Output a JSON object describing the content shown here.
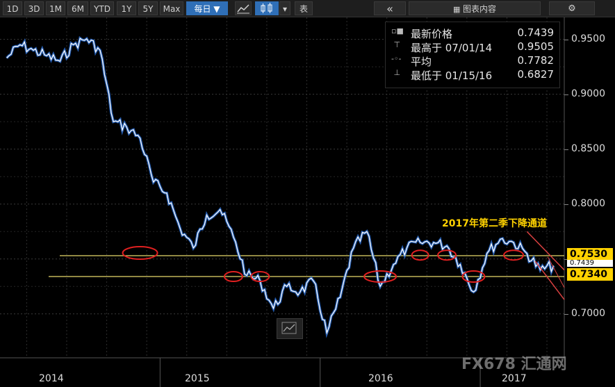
{
  "toolbar": {
    "ranges": [
      "1D",
      "3D",
      "1M",
      "6M",
      "YTD",
      "1Y",
      "5Y",
      "Max"
    ],
    "frequency": "每日 ▼",
    "table_label": "表",
    "collapse_label": "«",
    "chart_content_label": "图表内容",
    "colors": {
      "active": "#2f6fb7"
    }
  },
  "legend": {
    "latest_label": "最新价格",
    "latest_value": "0.7439",
    "high_label": "最高于 07/01/14",
    "high_value": "0.9505",
    "avg_label": "平均",
    "avg_value": "0.7782",
    "low_label": "最低于 01/15/16",
    "low_value": "0.6827"
  },
  "annotation": "2017年第二季下降通道",
  "tags": {
    "upper": "0.7530",
    "middle": "0.7439",
    "lower": "0.7340"
  },
  "watermark": "FX678 汇通网",
  "chart_data": {
    "type": "line",
    "series": [
      {
        "x": [
          "2014-01",
          "2014-02",
          "2014-03",
          "2014-04",
          "2014-05",
          "2014-06",
          "2014-07",
          "2014-08",
          "2014-09",
          "2014-10",
          "2014-11",
          "2014-12",
          "2015-01",
          "2015-02",
          "2015-03",
          "2015-04",
          "2015-05",
          "2015-06",
          "2015-07",
          "2015-08",
          "2015-09",
          "2015-10",
          "2015-11",
          "2015-12",
          "2016-01",
          "2016-02",
          "2016-03",
          "2016-04",
          "2016-05",
          "2016-06",
          "2016-07",
          "2016-08",
          "2016-09",
          "2016-10",
          "2016-11",
          "2016-12",
          "2017-01",
          "2017-02",
          "2017-03",
          "2017-04",
          "2017-05",
          "2017-06"
        ],
        "values": [
          0.933,
          0.945,
          0.94,
          0.935,
          0.93,
          0.945,
          0.9505,
          0.94,
          0.875,
          0.87,
          0.86,
          0.82,
          0.81,
          0.778,
          0.76,
          0.79,
          0.795,
          0.77,
          0.735,
          0.73,
          0.705,
          0.725,
          0.72,
          0.73,
          0.6827,
          0.715,
          0.76,
          0.775,
          0.725,
          0.745,
          0.76,
          0.765,
          0.765,
          0.762,
          0.745,
          0.72,
          0.755,
          0.768,
          0.765,
          0.755,
          0.74,
          0.7439
        ]
      }
    ],
    "x_axis_labels": [
      "2014",
      "2015",
      "2016",
      "2017"
    ],
    "y_ticks": [
      "0.7000",
      "0.7500",
      "0.8000",
      "0.8500",
      "0.9000",
      "0.9500"
    ],
    "ylim": [
      0.66,
      0.97
    ],
    "grid": true,
    "colors": {
      "line": "#ffffff",
      "shadow": "#2a6fd6",
      "support": "#e8d96b",
      "circles": "#e02020",
      "channel": "#d84040"
    }
  }
}
